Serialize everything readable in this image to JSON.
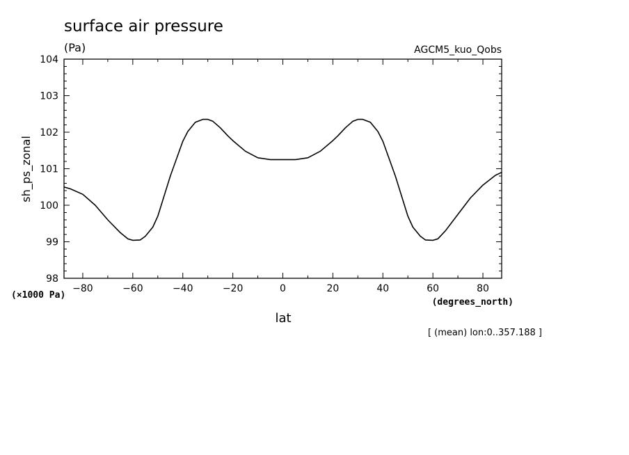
{
  "chart_data": {
    "type": "line",
    "title": "surface air pressure",
    "units": "(Pa)",
    "run_label": "AGCM5_kuo_Qobs",
    "xlabel": "lat",
    "x_units": "(degrees_north)",
    "ylabel": "sh_ps_zonal",
    "y_scale_note": "(×1000 Pa)",
    "footnote": "[ (mean) lon:0..357.188 ]",
    "xlim": [
      -87.5,
      87.5
    ],
    "ylim": [
      98,
      104
    ],
    "x_ticks": [
      "−80",
      "−60",
      "−40",
      "−20",
      "0",
      "20",
      "40",
      "60",
      "80"
    ],
    "x_tick_values": [
      -80,
      -60,
      -40,
      -20,
      0,
      20,
      40,
      60,
      80
    ],
    "y_ticks": [
      "98",
      "99",
      "100",
      "101",
      "102",
      "103",
      "104"
    ],
    "y_tick_values": [
      98,
      99,
      100,
      101,
      102,
      103,
      104
    ],
    "grid": false,
    "line_color": "#000000",
    "series": [
      {
        "x": [
          -87.5,
          -85,
          -80,
          -75,
          -70,
          -65,
          -62,
          -60,
          -57,
          -55,
          -52,
          -50,
          -45,
          -40,
          -38,
          -35,
          -32,
          -30,
          -28,
          -25,
          -22,
          -20,
          -15,
          -10,
          -5,
          0,
          5,
          10,
          15,
          20,
          22,
          25,
          28,
          30,
          32,
          35,
          38,
          40,
          45,
          50,
          52,
          55,
          57,
          60,
          62,
          65,
          70,
          75,
          80,
          85,
          87.5
        ],
        "y": [
          100.5,
          100.45,
          100.3,
          100.0,
          99.6,
          99.25,
          99.08,
          99.04,
          99.05,
          99.15,
          99.4,
          99.7,
          100.8,
          101.75,
          102.02,
          102.27,
          102.35,
          102.35,
          102.3,
          102.12,
          101.9,
          101.77,
          101.48,
          101.3,
          101.25,
          101.25,
          101.25,
          101.3,
          101.48,
          101.77,
          101.9,
          102.12,
          102.3,
          102.35,
          102.35,
          102.27,
          102.02,
          101.75,
          100.8,
          99.7,
          99.4,
          99.15,
          99.05,
          99.04,
          99.08,
          99.3,
          99.75,
          100.2,
          100.55,
          100.82,
          100.9
        ]
      }
    ]
  }
}
